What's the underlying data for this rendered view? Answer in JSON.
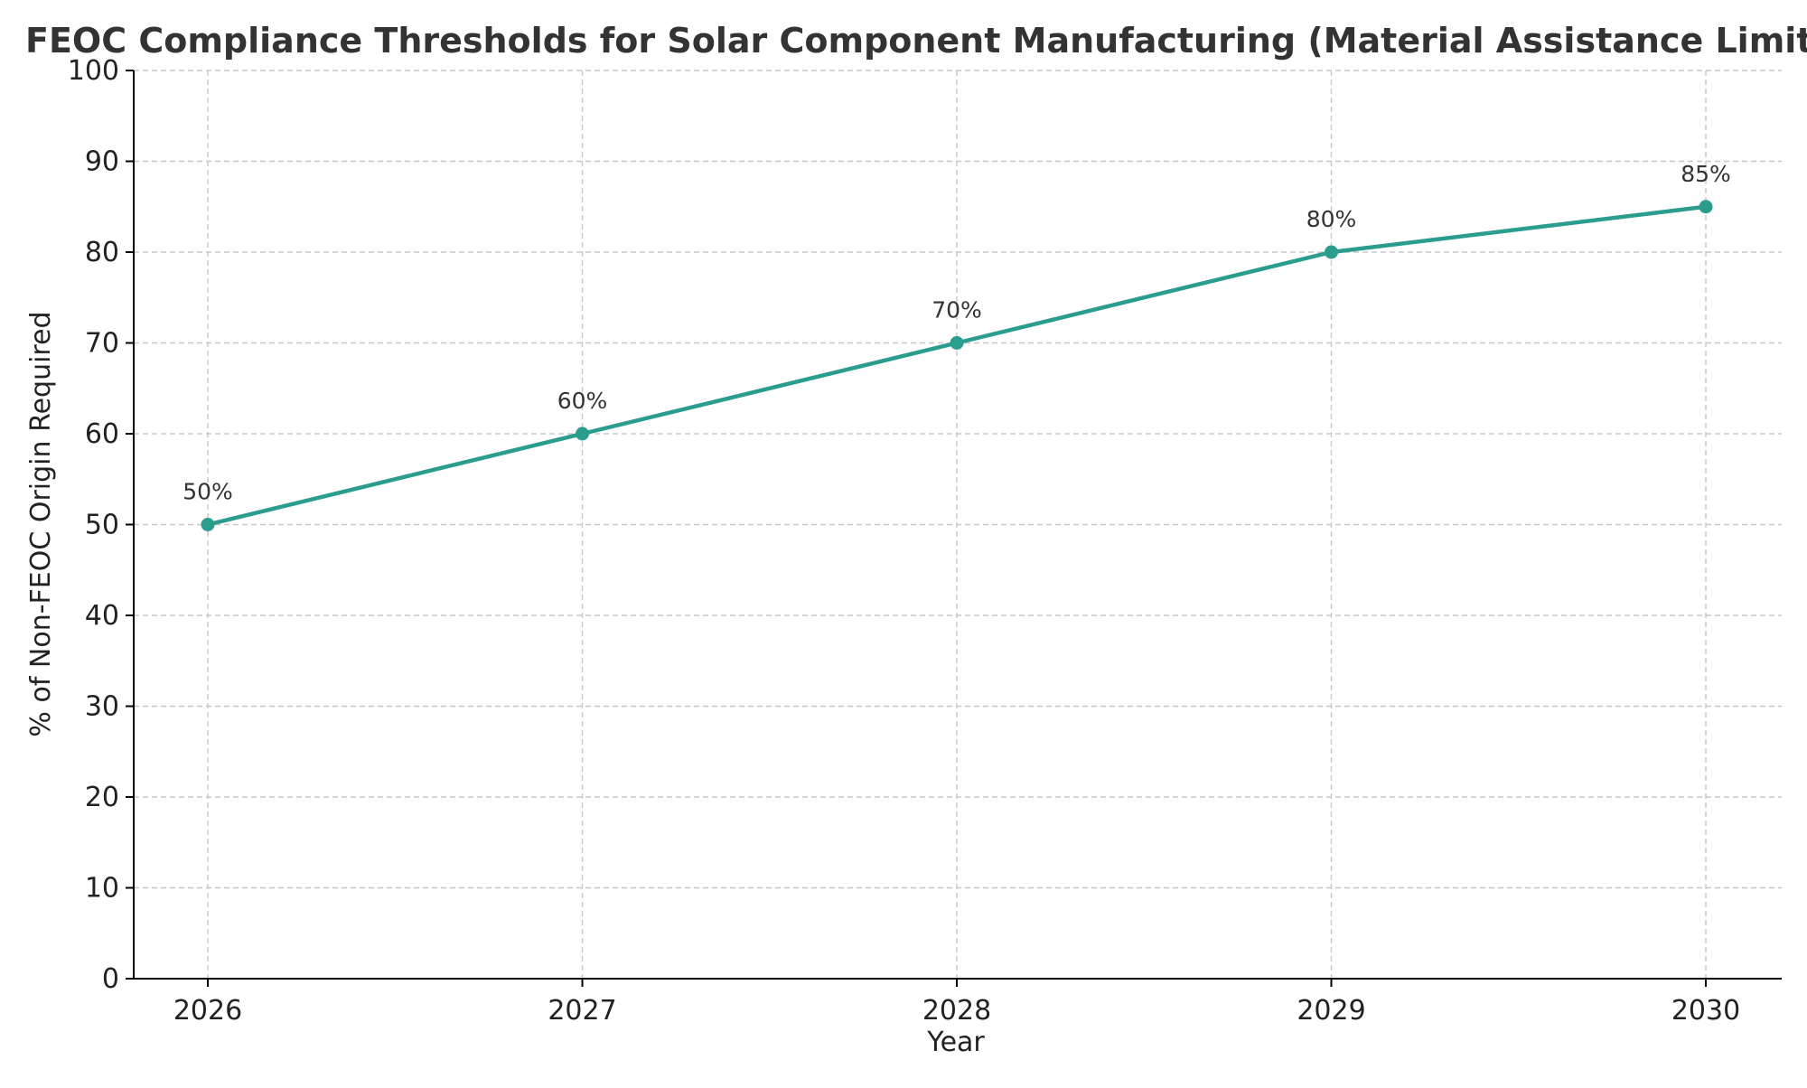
{
  "chart_data": {
    "type": "line",
    "title": "FEOC Compliance Thresholds for Solar Component Manufacturing (Material Assistance Limits)",
    "xlabel": "Year",
    "ylabel": "% of Non-FEOC Origin Required",
    "x": [
      "2026",
      "2027",
      "2028",
      "2029",
      "2030"
    ],
    "series": [
      {
        "values": [
          50,
          60,
          70,
          80,
          85
        ],
        "labels": [
          "50%",
          "60%",
          "70%",
          "80%",
          "85%"
        ],
        "color": "#2a9d8f"
      }
    ],
    "ylim": [
      0,
      100
    ],
    "yticks": [
      0,
      10,
      20,
      30,
      40,
      50,
      60,
      70,
      80,
      90,
      100
    ],
    "grid": true,
    "legend": "none"
  }
}
